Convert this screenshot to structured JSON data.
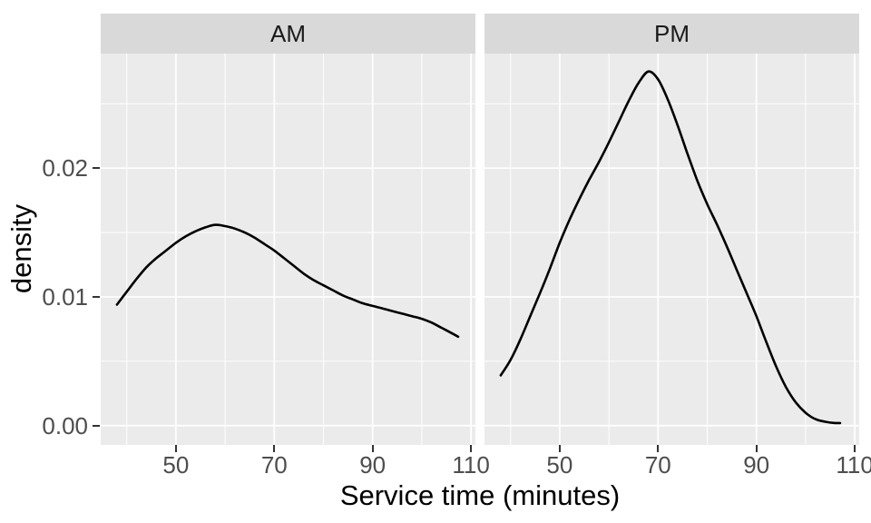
{
  "chart_data": {
    "type": "line",
    "subtype": "faceted-density",
    "title": "",
    "xlabel": "Service time (minutes)",
    "ylabel": "density",
    "x_range": [
      34.7,
      110.9
    ],
    "y_range": [
      -0.0015,
      0.0289
    ],
    "x_major_ticks": [
      50,
      70,
      90,
      110
    ],
    "x_tick_labels": [
      "50",
      "70",
      "90",
      "110"
    ],
    "x_minor_gridlines": [
      40,
      60,
      80,
      100
    ],
    "y_major_ticks": [
      0.0,
      0.01,
      0.02
    ],
    "y_tick_labels": [
      "0.00",
      "0.01",
      "0.02"
    ],
    "y_minor_gridlines": [
      0.005,
      0.015,
      0.025
    ],
    "grid": "on",
    "legend": "none",
    "facets": [
      {
        "label": "AM",
        "series": {
          "name": "density",
          "points": [
            [
              38,
              0.0094
            ],
            [
              40,
              0.0104
            ],
            [
              42,
              0.0114
            ],
            [
              44,
              0.0123
            ],
            [
              46,
              0.013
            ],
            [
              48,
              0.0136
            ],
            [
              50,
              0.0142
            ],
            [
              52,
              0.0147
            ],
            [
              54,
              0.0151
            ],
            [
              56,
              0.0154
            ],
            [
              58,
              0.0156
            ],
            [
              60,
              0.0155
            ],
            [
              62,
              0.0153
            ],
            [
              64,
              0.015
            ],
            [
              66,
              0.0146
            ],
            [
              68,
              0.0141
            ],
            [
              70,
              0.0136
            ],
            [
              72,
              0.013
            ],
            [
              74,
              0.0124
            ],
            [
              76,
              0.0118
            ],
            [
              78,
              0.0113
            ],
            [
              80,
              0.0109
            ],
            [
              82,
              0.0105
            ],
            [
              84,
              0.0101
            ],
            [
              86,
              0.0098
            ],
            [
              88,
              0.0095
            ],
            [
              90,
              0.0093
            ],
            [
              92,
              0.0091
            ],
            [
              94,
              0.0089
            ],
            [
              96,
              0.0087
            ],
            [
              98,
              0.0085
            ],
            [
              100,
              0.0083
            ],
            [
              102,
              0.008
            ],
            [
              104,
              0.0076
            ],
            [
              106,
              0.0072
            ],
            [
              107.4,
              0.0069
            ]
          ]
        }
      },
      {
        "label": "PM",
        "series": {
          "name": "density",
          "points": [
            [
              38,
              0.0039
            ],
            [
              40,
              0.0051
            ],
            [
              42,
              0.0067
            ],
            [
              44,
              0.0085
            ],
            [
              46,
              0.0103
            ],
            [
              48,
              0.0122
            ],
            [
              50,
              0.0142
            ],
            [
              52,
              0.016
            ],
            [
              54,
              0.0176
            ],
            [
              56,
              0.0191
            ],
            [
              58,
              0.0205
            ],
            [
              60,
              0.022
            ],
            [
              62,
              0.0236
            ],
            [
              64,
              0.0252
            ],
            [
              66,
              0.0266
            ],
            [
              68,
              0.0275
            ],
            [
              70,
              0.0269
            ],
            [
              72,
              0.0253
            ],
            [
              74,
              0.0233
            ],
            [
              76,
              0.0211
            ],
            [
              78,
              0.019
            ],
            [
              80,
              0.0172
            ],
            [
              82,
              0.0156
            ],
            [
              84,
              0.0139
            ],
            [
              86,
              0.0121
            ],
            [
              88,
              0.0103
            ],
            [
              90,
              0.0085
            ],
            [
              92,
              0.0065
            ],
            [
              94,
              0.0046
            ],
            [
              96,
              0.003
            ],
            [
              98,
              0.0018
            ],
            [
              100,
              0.001
            ],
            [
              102,
              0.0005
            ],
            [
              104,
              0.0003
            ],
            [
              106,
              0.0002
            ],
            [
              107,
              0.0002
            ]
          ]
        }
      }
    ]
  },
  "theme": {
    "background": "#ffffff",
    "panel_background": "#ebebeb",
    "strip_background": "#d9d9d9",
    "strip_text_color": "#1a1a1a",
    "grid_color": "#ffffff",
    "curve_color": "#000000",
    "tick_label_color": "#4d4d4d",
    "tick_mark_color": "#333333",
    "axis_title_color": "#000000"
  }
}
